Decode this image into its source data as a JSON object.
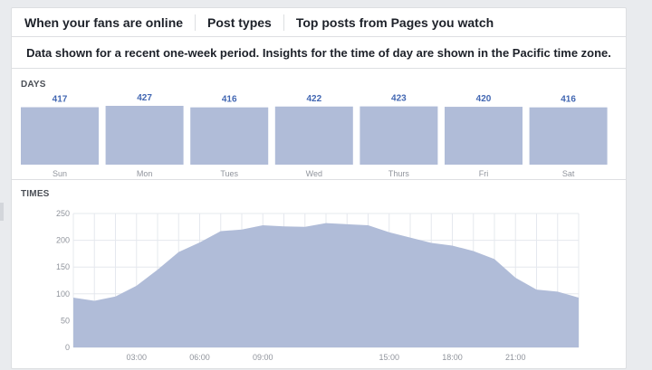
{
  "tabs": [
    {
      "label": "When your fans are online",
      "active": true
    },
    {
      "label": "Post types",
      "active": false
    },
    {
      "label": "Top posts from Pages you watch",
      "active": false
    }
  ],
  "notice": "Data shown for a recent one-week period. Insights for the time of day are shown in the Pacific time zone.",
  "days_label": "DAYS",
  "times_label": "TIMES",
  "colors": {
    "bar_fill": "#b0bcd8",
    "value_text": "#4267b2",
    "axis_text": "#90949c",
    "grid": "#e5e8ee"
  },
  "chart_data": [
    {
      "type": "bar",
      "categories": [
        "Sun",
        "Mon",
        "Tues",
        "Wed",
        "Thurs",
        "Fri",
        "Sat"
      ],
      "values": [
        417,
        427,
        416,
        422,
        423,
        420,
        416
      ]
    },
    {
      "type": "area",
      "x": [
        0,
        1,
        2,
        3,
        4,
        5,
        6,
        7,
        8,
        9,
        10,
        11,
        12,
        13,
        14,
        15,
        16,
        17,
        18,
        19,
        20,
        21,
        22,
        23,
        24
      ],
      "values": [
        93,
        87,
        95,
        115,
        145,
        178,
        196,
        217,
        220,
        228,
        226,
        225,
        232,
        230,
        228,
        215,
        205,
        195,
        190,
        180,
        165,
        130,
        108,
        104,
        93
      ],
      "xtick_labels": [
        "03:00",
        "06:00",
        "09:00",
        "15:00",
        "18:00",
        "21:00"
      ],
      "xtick_positions": [
        3,
        6,
        9,
        15,
        18,
        21
      ],
      "yticks": [
        0,
        50,
        100,
        150,
        200,
        250
      ],
      "ylim": [
        0,
        250
      ],
      "xlim": [
        0,
        24
      ]
    }
  ]
}
